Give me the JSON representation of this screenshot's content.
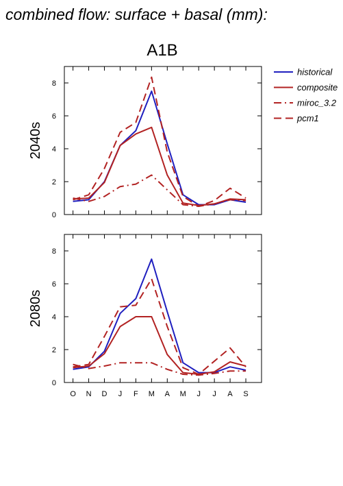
{
  "page_title": "combined flow: surface + basal (mm):",
  "chart_data": {
    "type": "line",
    "scenario": "A1B",
    "categories": [
      "O",
      "N",
      "D",
      "J",
      "F",
      "M",
      "A",
      "M",
      "J",
      "J",
      "A",
      "S"
    ],
    "ylim": [
      0,
      9
    ],
    "yticks": [
      0,
      2,
      4,
      6,
      8
    ],
    "grid": false,
    "legend_position": "right",
    "series_styles": [
      {
        "name": "historical",
        "color": "#1f1fbf",
        "dash": "solid"
      },
      {
        "name": "composite",
        "color": "#b22222",
        "dash": "solid"
      },
      {
        "name": "miroc_3.2",
        "color": "#b22222",
        "dash": "dash-dot"
      },
      {
        "name": "pcm1",
        "color": "#b22222",
        "dash": "dashed"
      }
    ],
    "panels": [
      {
        "ylabel": "2040s",
        "series": [
          {
            "name": "historical",
            "values": [
              0.8,
              0.9,
              2.0,
              4.2,
              5.1,
              7.5,
              4.3,
              1.2,
              0.6,
              0.6,
              0.9,
              0.75
            ]
          },
          {
            "name": "composite",
            "values": [
              0.95,
              1.0,
              1.95,
              4.2,
              4.9,
              5.3,
              2.4,
              0.7,
              0.55,
              0.65,
              0.95,
              0.9
            ]
          },
          {
            "name": "miroc_3.2",
            "values": [
              1.0,
              0.8,
              1.1,
              1.7,
              1.85,
              2.4,
              1.5,
              0.6,
              0.5,
              0.65,
              0.9,
              0.85
            ]
          },
          {
            "name": "pcm1",
            "values": [
              0.9,
              1.2,
              2.8,
              5.0,
              5.6,
              8.35,
              3.8,
              1.1,
              0.5,
              0.85,
              1.6,
              1.0
            ]
          }
        ]
      },
      {
        "ylabel": "2080s",
        "series": [
          {
            "name": "historical",
            "values": [
              0.8,
              0.95,
              1.9,
              4.2,
              5.1,
              7.5,
              4.3,
              1.2,
              0.6,
              0.6,
              0.95,
              0.75
            ]
          },
          {
            "name": "composite",
            "values": [
              0.9,
              1.0,
              1.75,
              3.4,
              4.0,
              4.0,
              1.7,
              0.6,
              0.5,
              0.65,
              1.25,
              1.0
            ]
          },
          {
            "name": "miroc_3.2",
            "values": [
              1.1,
              0.85,
              1.0,
              1.2,
              1.2,
              1.2,
              0.8,
              0.5,
              0.45,
              0.55,
              0.7,
              0.7
            ]
          },
          {
            "name": "pcm1",
            "values": [
              0.95,
              1.1,
              2.8,
              4.6,
              4.7,
              6.3,
              3.4,
              0.9,
              0.5,
              1.3,
              2.1,
              0.95
            ]
          }
        ]
      }
    ]
  }
}
